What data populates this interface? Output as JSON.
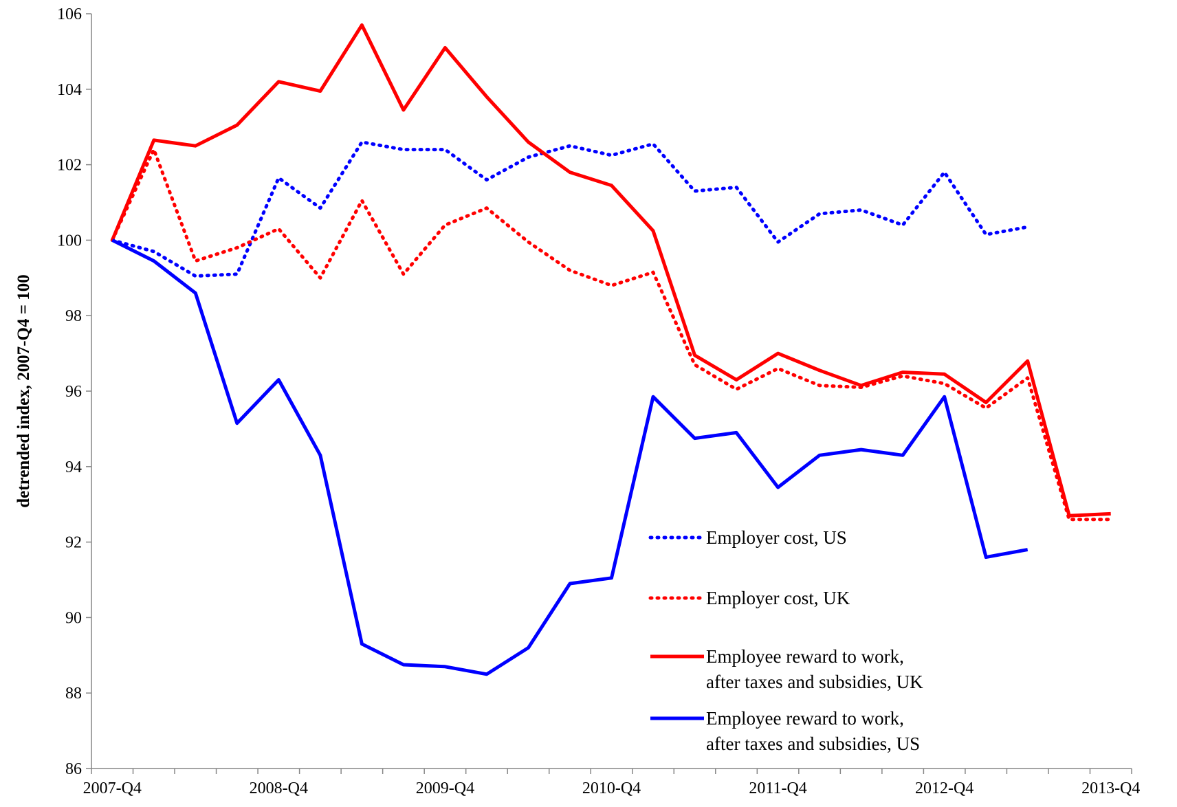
{
  "chart_data": {
    "type": "line",
    "ylabel": "detrended index, 2007-Q4 = 100",
    "categories": [
      "2007-Q4",
      null,
      null,
      null,
      "2008-Q4",
      null,
      null,
      null,
      "2009-Q4",
      null,
      null,
      null,
      "2010-Q4",
      null,
      null,
      null,
      "2011-Q4",
      null,
      null,
      null,
      "2012-Q4",
      null,
      null,
      null,
      "2013-Q4"
    ],
    "ylim": [
      86,
      106
    ],
    "yticks": [
      86,
      88,
      90,
      92,
      94,
      96,
      98,
      100,
      102,
      104,
      106
    ],
    "grid": false,
    "series": [
      {
        "name": "Employer cost, US",
        "color": "#0000ff",
        "dash": "dotted",
        "values": [
          100,
          99.7,
          99.05,
          99.1,
          101.65,
          100.85,
          102.6,
          102.4,
          102.4,
          101.6,
          102.2,
          102.5,
          102.25,
          102.55,
          101.3,
          101.4,
          99.95,
          100.7,
          100.8,
          100.4,
          101.8,
          100.15,
          100.35,
          null,
          null
        ]
      },
      {
        "name": "Employer cost, UK",
        "color": "#ff0000",
        "dash": "dotted",
        "values": [
          100,
          102.4,
          99.45,
          99.8,
          100.3,
          99.0,
          101.05,
          99.1,
          100.4,
          100.85,
          99.95,
          99.2,
          98.8,
          99.15,
          96.7,
          96.05,
          96.6,
          96.15,
          96.1,
          96.4,
          96.2,
          95.55,
          96.35,
          92.6,
          92.6
        ]
      },
      {
        "name": "Employee reward to work,\nafter taxes and subsidies, UK",
        "color": "#ff0000",
        "dash": "solid",
        "values": [
          100,
          102.65,
          102.5,
          103.05,
          104.2,
          103.95,
          105.7,
          103.45,
          105.1,
          103.8,
          102.6,
          101.8,
          101.45,
          100.25,
          96.95,
          96.3,
          97.0,
          96.55,
          96.15,
          96.5,
          96.45,
          95.7,
          96.8,
          92.7,
          92.75
        ]
      },
      {
        "name": "Employee reward to work,\nafter taxes and subsidies, US",
        "color": "#0000ff",
        "dash": "solid",
        "values": [
          100,
          99.45,
          98.6,
          95.15,
          96.3,
          94.3,
          89.3,
          88.75,
          88.7,
          88.5,
          89.2,
          90.9,
          91.05,
          95.85,
          94.75,
          94.9,
          93.45,
          94.3,
          94.45,
          94.3,
          95.85,
          91.6,
          91.8,
          null,
          null
        ]
      }
    ]
  }
}
